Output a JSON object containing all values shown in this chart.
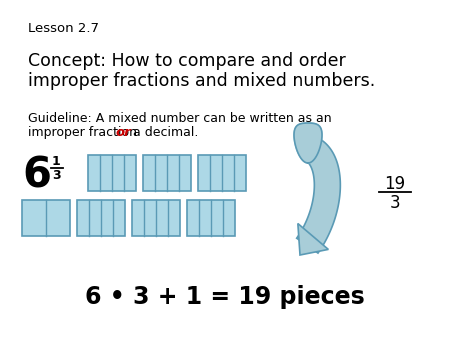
{
  "bg_color": "#ffffff",
  "lesson_text": "Lesson 2.7",
  "concept_line1": "Concept: How to compare and order",
  "concept_line2": "improper fractions and mixed numbers.",
  "guideline_line1": "Guideline: A mixed number can be written as an",
  "guideline_pre_or": "improper fraction ",
  "guideline_or": "or",
  "guideline_post_or": " a decimal.",
  "mixed_whole": "6",
  "mixed_num": "1",
  "mixed_den": "3",
  "improper_num": "19",
  "improper_den": "3",
  "bottom_text": "6 • 3 + 1 = 19 pieces",
  "box_fill": "#add8e6",
  "box_edge": "#5a9ab5",
  "arrow_fill": "#a8cdd8",
  "arrow_edge": "#5a9ab5"
}
